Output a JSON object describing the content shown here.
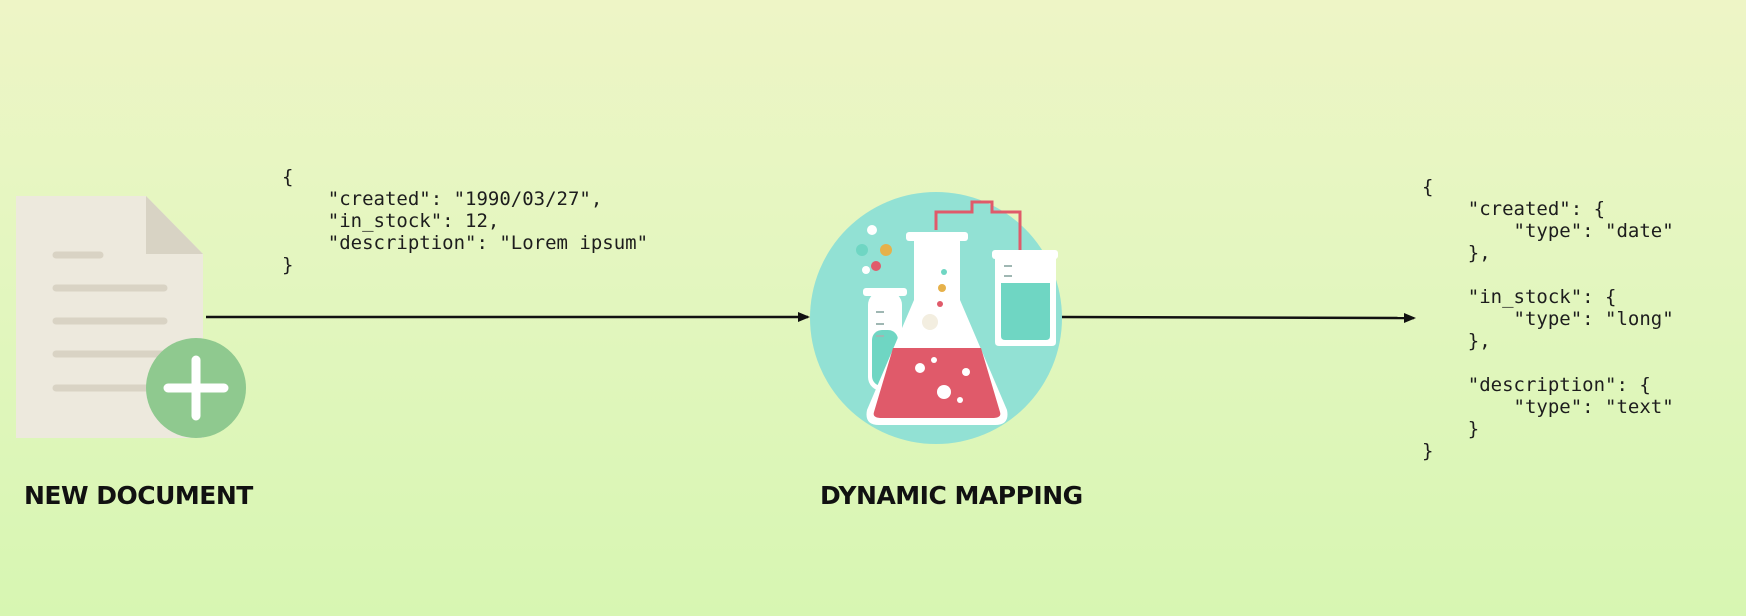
{
  "left": {
    "json_lines": [
      "{",
      "    \"created\": \"1990/03/27\",",
      "    \"in_stock\": 12,",
      "    \"description\": \"Lorem ipsum\"",
      "}"
    ],
    "label": "NEW DOCUMENT",
    "icon": "document-plus-icon"
  },
  "center": {
    "label": "DYNAMIC MAPPING",
    "icon": "lab-flask-icon"
  },
  "right": {
    "json_lines": [
      "{",
      "    \"created\": {",
      "        \"type\": \"date\"",
      "    },",
      "",
      "    \"in_stock\": {",
      "        \"type\": \"long\"",
      "    },",
      "",
      "    \"description\": {",
      "        \"type\": \"text\"",
      "    }",
      "}"
    ]
  },
  "colors": {
    "background_top": "#eef5c6",
    "background_bottom": "#d7f6b2",
    "document": "#ede9dd",
    "plus_badge": "#8fc98f",
    "lab_circle": "#92e1d4",
    "liquid_red": "#e05a6a",
    "liquid_teal": "#6fd6c3",
    "arrow": "#111111"
  }
}
